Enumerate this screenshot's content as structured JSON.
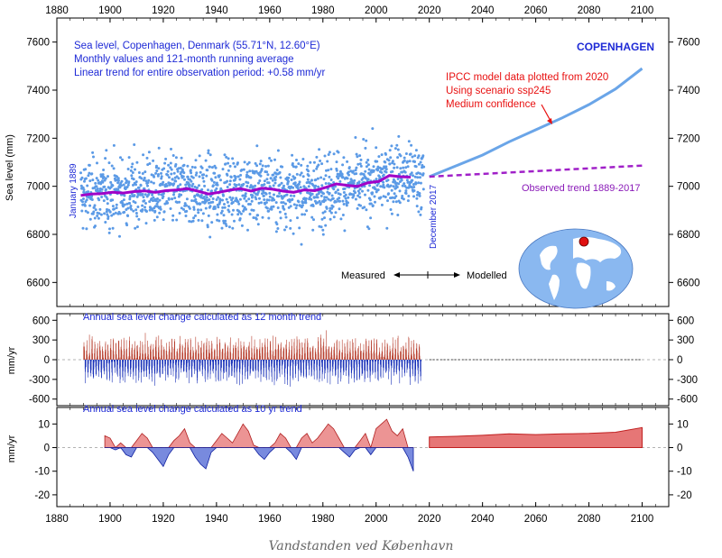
{
  "caption": "Vandstanden ved København",
  "chart_data": [
    {
      "type": "scatter",
      "panel": "sea-level",
      "station_label": "COPENHAGEN",
      "info_lines": [
        "Sea level, Copenhagen, Denmark (55.71°N, 12.60°E)",
        "Monthly values and 121-month running average",
        "Linear trend for entire observation period: +0.58 mm/yr"
      ],
      "ylabel": "Sea level (mm)",
      "xlim": [
        1880,
        2110
      ],
      "ylim": [
        6500,
        7700
      ],
      "x_ticks": [
        1880,
        1900,
        1920,
        1940,
        1960,
        1980,
        2000,
        2020,
        2040,
        2060,
        2080,
        2100
      ],
      "y_ticks": [
        6600,
        6800,
        7000,
        7200,
        7400,
        7600
      ],
      "start_label": "January 1889",
      "end_label": "December 2017",
      "measured_label": "Measured",
      "modelled_label": "Modelled",
      "ipcc_lines": [
        "IPCC model data plotted from 2020",
        "Using scenario ssp245",
        "Medium confidence"
      ],
      "trend_label": "Observed trend 1889-2017",
      "running_average": {
        "x": [
          1889,
          1893,
          1897,
          1901,
          1905,
          1909,
          1913,
          1917,
          1921,
          1925,
          1929,
          1933,
          1937,
          1941,
          1945,
          1949,
          1953,
          1957,
          1961,
          1965,
          1969,
          1973,
          1977,
          1981,
          1985,
          1989,
          1993,
          1997,
          2001,
          2005,
          2009,
          2013
        ],
        "y": [
          6962,
          6968,
          6970,
          6975,
          6972,
          6978,
          6981,
          6975,
          6982,
          6985,
          6990,
          6980,
          6968,
          6975,
          6984,
          6990,
          6980,
          6992,
          6988,
          6980,
          6975,
          6985,
          6982,
          6995,
          7010,
          7004,
          7000,
          7015,
          7020,
          7045,
          7040,
          7038
        ]
      },
      "ipcc_projection": {
        "x": [
          2020,
          2030,
          2040,
          2050,
          2060,
          2070,
          2080,
          2090,
          2100
        ],
        "y": [
          7040,
          7085,
          7130,
          7185,
          7235,
          7285,
          7340,
          7405,
          7490
        ]
      },
      "observed_trend": {
        "x": [
          2020,
          2100
        ],
        "y": [
          7040,
          7086
        ]
      },
      "colors": {
        "points": "#5b9ae6",
        "running_average": "#a000c8",
        "ipcc": "#6aa5e8",
        "trend": "#a020c8",
        "text": "#1e2ad6",
        "ipcc_text": "#e81010"
      }
    },
    {
      "type": "bar",
      "panel": "annual-12-month",
      "title": "Annual sea level change calculated as 12 month trend",
      "ylabel": "mm/yr",
      "xlim": [
        1880,
        2110
      ],
      "ylim": [
        -700,
        700
      ],
      "y_ticks": [
        600,
        300,
        0,
        -300,
        -600
      ],
      "x_range": [
        1890,
        2017
      ],
      "amplitude": 300,
      "colors": {
        "positive": "#b84030",
        "negative": "#1830b8"
      }
    },
    {
      "type": "area",
      "panel": "ten-year",
      "title": "Annual sea level change calculated as 10 yr trend",
      "ylabel": "mm/yr",
      "xlim": [
        1880,
        2110
      ],
      "ylim": [
        -25,
        17
      ],
      "y_ticks": [
        10,
        0,
        -10,
        -20
      ],
      "x_ticks": [
        1880,
        1900,
        1920,
        1940,
        1960,
        1980,
        2000,
        2020,
        2040,
        2060,
        2080,
        2100
      ],
      "observed": {
        "x": [
          1898,
          1900,
          1902,
          1904,
          1906,
          1908,
          1910,
          1912,
          1914,
          1916,
          1918,
          1920,
          1922,
          1924,
          1926,
          1928,
          1930,
          1932,
          1934,
          1936,
          1938,
          1940,
          1942,
          1944,
          1946,
          1948,
          1950,
          1952,
          1954,
          1956,
          1958,
          1960,
          1962,
          1964,
          1966,
          1968,
          1970,
          1972,
          1974,
          1976,
          1978,
          1980,
          1982,
          1984,
          1986,
          1988,
          1990,
          1992,
          1994,
          1996,
          1998,
          2000,
          2002,
          2004,
          2006,
          2008,
          2010,
          2012,
          2014
        ],
        "y": [
          5,
          4,
          -1,
          2,
          -3,
          -4,
          3,
          6,
          4,
          -2,
          -5,
          -8,
          -3,
          3,
          5,
          8,
          2,
          -4,
          -7,
          -9,
          -2,
          3,
          6,
          4,
          2,
          6,
          10,
          7,
          1,
          -3,
          -5,
          -2,
          2,
          6,
          4,
          -2,
          -5,
          4,
          6,
          2,
          4,
          7,
          10,
          8,
          4,
          -2,
          -4,
          -1,
          3,
          6,
          -3,
          8,
          10,
          12,
          7,
          5,
          8,
          -4,
          -10
        ]
      },
      "projected": {
        "x": [
          2020,
          2030,
          2040,
          2050,
          2060,
          2070,
          2080,
          2090,
          2100
        ],
        "y": [
          4.5,
          4.8,
          5.2,
          5.8,
          5.5,
          5.8,
          6.0,
          6.5,
          8.5
        ]
      },
      "colors": {
        "positive": "#dc3c3c",
        "negative": "#1e3cc8"
      }
    }
  ]
}
